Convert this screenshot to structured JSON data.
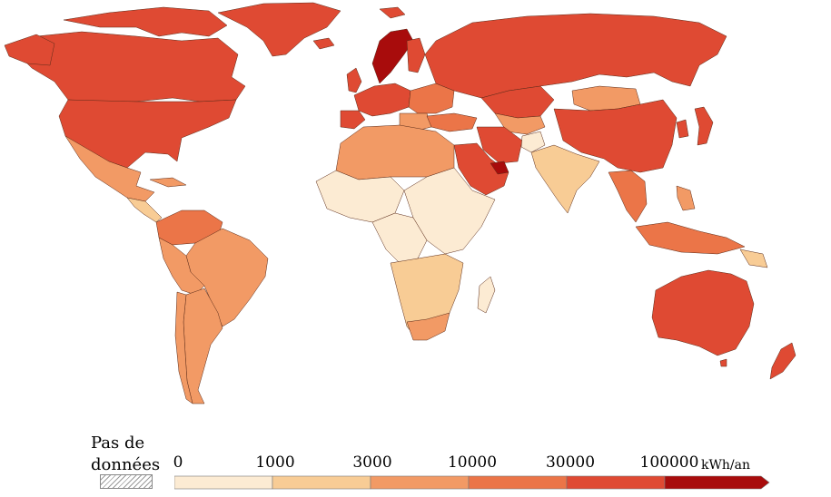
{
  "map": {
    "colors": {
      "class_0_1000": "#fcebd3",
      "class_1000_3000": "#f8cc95",
      "class_3000_10000": "#f29a65",
      "class_10000_30000": "#eb7548",
      "class_30000_100000": "#df4a33",
      "class_100000_plus": "#a80c0c",
      "border": "#5a2a18"
    }
  },
  "legend": {
    "nodata_line1": "Pas de",
    "nodata_line2": "données",
    "ticks": [
      "0",
      "1000",
      "3000",
      "10000",
      "30000",
      "100000"
    ],
    "unit": "kWh/an",
    "colors": [
      "#fcebd3",
      "#f8cc95",
      "#f29a65",
      "#eb7548",
      "#df4a33",
      "#a80c0c"
    ]
  }
}
